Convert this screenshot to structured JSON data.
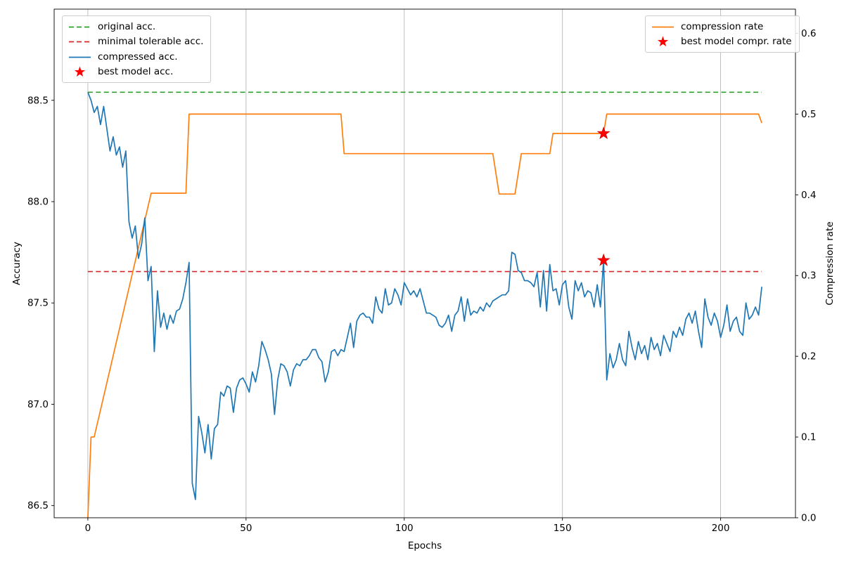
{
  "figure": {
    "xlabel": "Epochs",
    "ylabel_left": "Accuracy",
    "ylabel_right": "Compression rate"
  },
  "chart_data": {
    "type": "line",
    "title": "",
    "xlabel": "Epochs",
    "ylabel_left": "Accuracy",
    "ylabel_right": "Compression rate",
    "grid": "vertical-only",
    "x_ticks": [
      0,
      50,
      100,
      150,
      200
    ],
    "y_ticks_left": [
      86.5,
      87.0,
      87.5,
      88.0,
      88.5
    ],
    "y_ticks_right": [
      0.0,
      0.1,
      0.2,
      0.3,
      0.4,
      0.5,
      0.6
    ],
    "xlim": [
      -10.65,
      223.65
    ],
    "ylim_left": [
      86.44,
      88.95
    ],
    "ylim_right": [
      0.0,
      0.63
    ],
    "colors": {
      "compressed_acc": "#1f77b4",
      "compression_rate": "#ff7f0e",
      "original_acc": "#2ca02c",
      "minimal_tolerable_acc": "#d62728",
      "best_model_star": "#ff0000",
      "grid": "#b0b0b0"
    },
    "original_acc": 88.54,
    "minimal_tolerable_acc": 87.655,
    "best_model": {
      "epoch": 163,
      "acc": 87.71,
      "compression_rate": 0.476
    },
    "epochs_range": [
      0,
      213
    ],
    "compressed_acc": [
      88.54,
      88.5,
      88.44,
      88.47,
      88.38,
      88.47,
      88.36,
      88.25,
      88.32,
      88.23,
      88.27,
      88.17,
      88.25,
      87.9,
      87.82,
      87.88,
      87.72,
      87.79,
      87.92,
      87.61,
      87.68,
      87.26,
      87.56,
      87.38,
      87.45,
      87.37,
      87.44,
      87.4,
      87.46,
      87.47,
      87.52,
      87.6,
      87.7,
      86.61,
      86.53,
      86.94,
      86.86,
      86.76,
      86.9,
      86.73,
      86.88,
      86.9,
      87.06,
      87.04,
      87.09,
      87.08,
      86.96,
      87.08,
      87.12,
      87.13,
      87.1,
      87.06,
      87.16,
      87.11,
      87.19,
      87.31,
      87.27,
      87.22,
      87.15,
      86.95,
      87.12,
      87.2,
      87.19,
      87.16,
      87.09,
      87.17,
      87.2,
      87.19,
      87.22,
      87.22,
      87.24,
      87.27,
      87.27,
      87.23,
      87.21,
      87.11,
      87.16,
      87.26,
      87.27,
      87.24,
      87.27,
      87.26,
      87.33,
      87.4,
      87.28,
      87.41,
      87.44,
      87.45,
      87.43,
      87.43,
      87.4,
      87.53,
      87.47,
      87.45,
      87.57,
      87.49,
      87.5,
      87.57,
      87.54,
      87.49,
      87.6,
      87.57,
      87.54,
      87.56,
      87.53,
      87.57,
      87.51,
      87.45,
      87.45,
      87.44,
      87.43,
      87.39,
      87.38,
      87.4,
      87.44,
      87.36,
      87.44,
      87.46,
      87.53,
      87.41,
      87.52,
      87.44,
      87.46,
      87.45,
      87.48,
      87.46,
      87.5,
      87.48,
      87.51,
      87.52,
      87.53,
      87.54,
      87.54,
      87.56,
      87.75,
      87.74,
      87.66,
      87.65,
      87.61,
      87.61,
      87.6,
      87.58,
      87.65,
      87.48,
      87.66,
      87.46,
      87.69,
      87.56,
      87.57,
      87.49,
      87.59,
      87.61,
      87.48,
      87.42,
      87.61,
      87.56,
      87.6,
      87.53,
      87.56,
      87.55,
      87.48,
      87.59,
      87.48,
      87.71,
      87.12,
      87.25,
      87.18,
      87.22,
      87.3,
      87.22,
      87.19,
      87.36,
      87.28,
      87.22,
      87.31,
      87.25,
      87.29,
      87.22,
      87.33,
      87.27,
      87.3,
      87.24,
      87.34,
      87.3,
      87.26,
      87.36,
      87.33,
      87.38,
      87.34,
      87.42,
      87.45,
      87.4,
      87.46,
      87.36,
      87.28,
      87.52,
      87.43,
      87.39,
      87.45,
      87.41,
      87.33,
      87.39,
      87.49,
      87.36,
      87.41,
      87.43,
      87.36,
      87.34,
      87.5,
      87.42,
      87.44,
      87.48,
      87.44,
      87.58
    ],
    "compression_rate_points": [
      [
        0,
        0.0
      ],
      [
        1,
        0.1
      ],
      [
        2,
        0.1
      ],
      [
        20,
        0.402
      ],
      [
        31,
        0.402
      ],
      [
        32,
        0.5
      ],
      [
        80,
        0.5
      ],
      [
        81,
        0.451
      ],
      [
        128,
        0.451
      ],
      [
        130,
        0.401
      ],
      [
        135,
        0.401
      ],
      [
        137,
        0.451
      ],
      [
        146,
        0.451
      ],
      [
        147,
        0.476
      ],
      [
        163,
        0.476
      ],
      [
        164,
        0.5
      ],
      [
        212,
        0.5
      ],
      [
        213,
        0.489
      ]
    ],
    "legend_position": [
      "upper left",
      "upper right"
    ],
    "legends": [
      {
        "name": "accuracy-legend",
        "items": [
          {
            "label": "original acc.",
            "marker": "dashed",
            "color": "#2ca02c"
          },
          {
            "label": "minimal tolerable acc.",
            "marker": "dashed",
            "color": "#d62728"
          },
          {
            "label": "compressed acc.",
            "marker": "solid",
            "color": "#1f77b4"
          },
          {
            "label": "best model acc.",
            "marker": "star",
            "color": "#ff0000"
          }
        ]
      },
      {
        "name": "compression-legend",
        "items": [
          {
            "label": "compression rate",
            "marker": "solid",
            "color": "#ff7f0e"
          },
          {
            "label": "best model compr. rate",
            "marker": "star",
            "color": "#ff0000"
          }
        ]
      }
    ]
  }
}
